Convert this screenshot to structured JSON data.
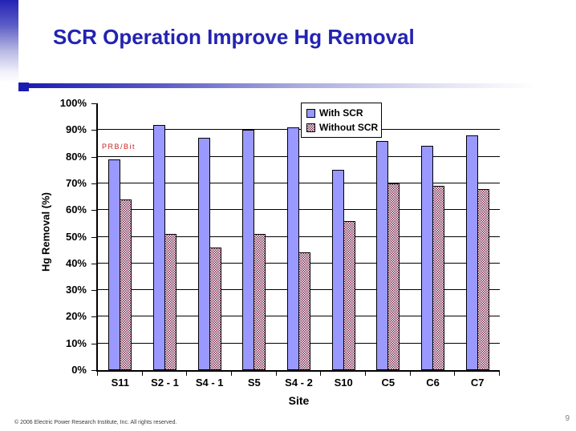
{
  "slide": {
    "title": "SCR Operation Improve Hg Removal",
    "footer": "© 2006 Electric Power Research Institute, Inc. All rights reserved.",
    "page_number": "9",
    "accent_color": "#2323b2"
  },
  "chart_data": {
    "type": "bar",
    "title": "",
    "xlabel": "Site",
    "ylabel": "Hg Removal (%)",
    "ylim": [
      0,
      100
    ],
    "ytick_step": 10,
    "ytick_labels": [
      "0%",
      "10%",
      "20%",
      "30%",
      "40%",
      "50%",
      "60%",
      "70%",
      "80%",
      "90%",
      "100%"
    ],
    "grid": true,
    "legend_position": "top-right",
    "categories": [
      "S11",
      "S2 - 1",
      "S4 - 1",
      "S5",
      "S4 - 2",
      "S10",
      "C5",
      "C6",
      "C7"
    ],
    "series": [
      {
        "name": "With SCR",
        "style": "solid",
        "color": "#9999ff",
        "values": [
          79,
          92,
          87,
          90,
          91,
          75,
          86,
          84,
          88
        ]
      },
      {
        "name": "Without SCR",
        "style": "checker",
        "color": "#7a2a50",
        "values": [
          64,
          51,
          46,
          51,
          44,
          56,
          70,
          69,
          68
        ]
      }
    ],
    "annotation": {
      "text": "PRB/Bit",
      "color": "#cc2222"
    }
  }
}
